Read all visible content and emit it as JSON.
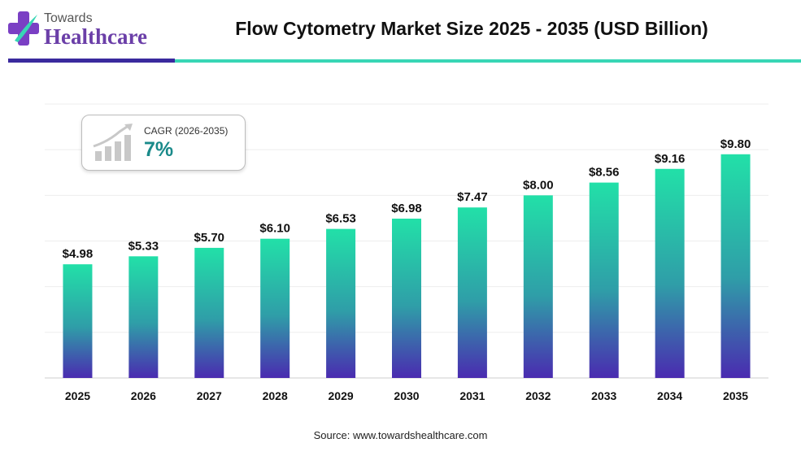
{
  "logo": {
    "line1": "Towards",
    "line2": "Healthcare"
  },
  "title": "Flow Cytometry Market Size 2025 - 2035 (USD Billion)",
  "cagr": {
    "label": "CAGR (2026-2035)",
    "value": "7%"
  },
  "source": "Source: www.towardshealthcare.com",
  "colors": {
    "bar_top": "#22e0a8",
    "bar_bottom": "#4a2bb0",
    "accent_purple": "#3a2a9e",
    "accent_teal": "#38d6b5"
  },
  "chart_data": {
    "type": "bar",
    "title": "Flow Cytometry Market Size 2025 - 2035 (USD Billion)",
    "categories": [
      "2025",
      "2026",
      "2027",
      "2028",
      "2029",
      "2030",
      "2031",
      "2032",
      "2033",
      "2034",
      "2035"
    ],
    "values": [
      4.98,
      5.33,
      5.7,
      6.1,
      6.53,
      6.98,
      7.47,
      8.0,
      8.56,
      9.16,
      9.8
    ],
    "data_labels": [
      "$4.98",
      "$5.33",
      "$5.70",
      "$6.10",
      "$6.53",
      "$6.98",
      "$7.47",
      "$8.00",
      "$8.56",
      "$9.16",
      "$9.80"
    ],
    "xlabel": "",
    "ylabel": "",
    "ylim": [
      0,
      12
    ],
    "grid": true,
    "legend": "none"
  }
}
